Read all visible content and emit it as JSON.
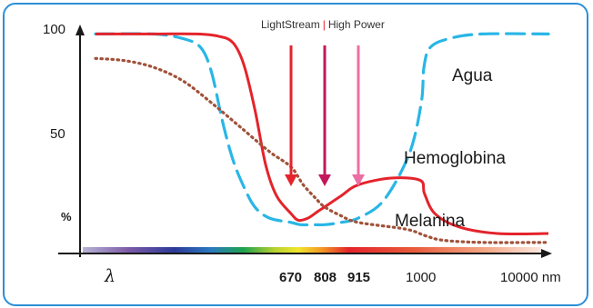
{
  "chart_data": {
    "type": "line",
    "title": "",
    "banner": {
      "part1": "LightStream",
      "separator": "|",
      "part2": "High Power"
    },
    "xlabel": "λ",
    "ylabel": "%",
    "x_ticks": [
      {
        "label": "670",
        "value": 670,
        "bold": true
      },
      {
        "label": "808",
        "value": 808,
        "bold": true
      },
      {
        "label": "915",
        "value": 915,
        "bold": true
      },
      {
        "label": "1000",
        "value": 1000,
        "bold": false
      },
      {
        "label": "10000 nm",
        "value": 10000,
        "bold": false
      }
    ],
    "y_ticks": [
      {
        "label": "100",
        "value": 100
      },
      {
        "label": "50",
        "value": 50
      }
    ],
    "ylim": [
      0,
      100
    ],
    "series": [
      {
        "name": "Agua",
        "color": "#29b6e6",
        "style": "dashed",
        "points": [
          [
            400,
            99
          ],
          [
            480,
            99
          ],
          [
            520,
            97
          ],
          [
            545,
            93
          ],
          [
            560,
            82
          ],
          [
            575,
            60
          ],
          [
            590,
            42
          ],
          [
            605,
            30
          ],
          [
            620,
            21
          ],
          [
            640,
            16
          ],
          [
            670,
            14
          ],
          [
            710,
            13
          ],
          [
            760,
            13
          ],
          [
            808,
            13
          ],
          [
            860,
            14
          ],
          [
            915,
            16
          ],
          [
            950,
            24
          ],
          [
            985,
            45
          ],
          [
            1020,
            68
          ],
          [
            1070,
            84
          ],
          [
            1200,
            93
          ],
          [
            1700,
            97
          ],
          [
            3000,
            99
          ],
          [
            10000,
            99
          ]
        ]
      },
      {
        "name": "Hemoglobina",
        "color": "#e4232b",
        "style": "solid",
        "points": [
          [
            400,
            99
          ],
          [
            480,
            99
          ],
          [
            540,
            99
          ],
          [
            570,
            98
          ],
          [
            590,
            95
          ],
          [
            605,
            85
          ],
          [
            620,
            65
          ],
          [
            635,
            40
          ],
          [
            650,
            26
          ],
          [
            670,
            18
          ],
          [
            700,
            15
          ],
          [
            740,
            16
          ],
          [
            780,
            19
          ],
          [
            808,
            21
          ],
          [
            860,
            26
          ],
          [
            915,
            31
          ],
          [
            960,
            34
          ],
          [
            1000,
            33
          ],
          [
            1080,
            27
          ],
          [
            1300,
            18
          ],
          [
            2000,
            12
          ],
          [
            4000,
            9
          ],
          [
            10000,
            9
          ]
        ]
      },
      {
        "name": "Melanina",
        "color": "#a0523a",
        "style": "dotted",
        "points": [
          [
            400,
            88
          ],
          [
            440,
            87
          ],
          [
            480,
            84
          ],
          [
            520,
            78
          ],
          [
            560,
            68
          ],
          [
            600,
            57
          ],
          [
            640,
            46
          ],
          [
            670,
            39
          ],
          [
            720,
            31
          ],
          [
            770,
            25
          ],
          [
            808,
            21
          ],
          [
            860,
            17
          ],
          [
            915,
            14
          ],
          [
            980,
            11
          ],
          [
            1100,
            8
          ],
          [
            1500,
            6
          ],
          [
            3000,
            5
          ],
          [
            10000,
            5
          ]
        ]
      }
    ],
    "laser_lines": [
      {
        "wavelength": 670,
        "color": "#e4232b"
      },
      {
        "wavelength": 808,
        "color": "#c2185b"
      },
      {
        "wavelength": 915,
        "color": "#ec6fa4"
      }
    ],
    "legend": "inline labels next to curves",
    "grid": false
  }
}
